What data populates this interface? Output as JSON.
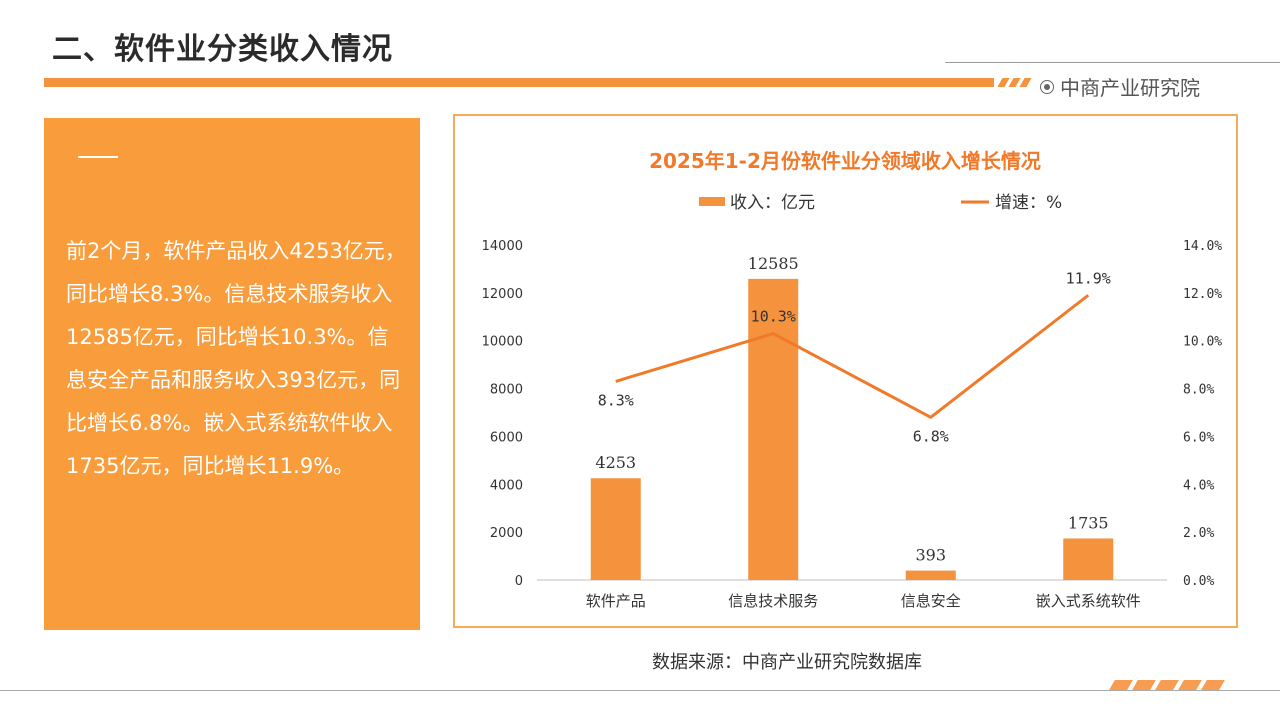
{
  "page": {
    "title": "二、软件业分类收入情况",
    "brand": "中商产业研究院",
    "source": "数据来源：中商产业研究院数据库",
    "accent_color": "#f5923e"
  },
  "summary": {
    "text": "前2个月，软件产品收入4253亿元，同比增长8.3%。信息技术服务收入12585亿元，同比增长10.3%。信息安全产品和服务收入393亿元，同比增长6.8%。嵌入式系统软件收入1735亿元，同比增长11.9%。"
  },
  "chart_data": {
    "type": "bar",
    "title": "2025年1-2月份软件业分领域收入增长情况",
    "categories": [
      "软件产品",
      "信息技术服务",
      "信息安全",
      "嵌入式系统软件"
    ],
    "series": [
      {
        "name": "收入：亿元",
        "type": "bar",
        "axis": "left",
        "values": [
          4253,
          12585,
          393,
          1735
        ],
        "labels": [
          "4253",
          "12585",
          "393",
          "1735"
        ],
        "color": "#f5923e"
      },
      {
        "name": "增速：%",
        "type": "line",
        "axis": "right",
        "values": [
          8.3,
          10.3,
          6.8,
          11.9
        ],
        "labels": [
          "8.3%",
          "10.3%",
          "6.8%",
          "11.9%"
        ],
        "color": "#f07a2a"
      }
    ],
    "y_left": {
      "range": [
        0,
        14000
      ],
      "ticks": [
        "0",
        "2000",
        "4000",
        "6000",
        "8000",
        "10000",
        "12000",
        "14000"
      ]
    },
    "y_right": {
      "range": [
        0,
        14
      ],
      "ticks": [
        "0.0%",
        "2.0%",
        "4.0%",
        "6.0%",
        "8.0%",
        "10.0%",
        "12.0%",
        "14.0%"
      ]
    },
    "legend": "top-center",
    "grid": false
  }
}
